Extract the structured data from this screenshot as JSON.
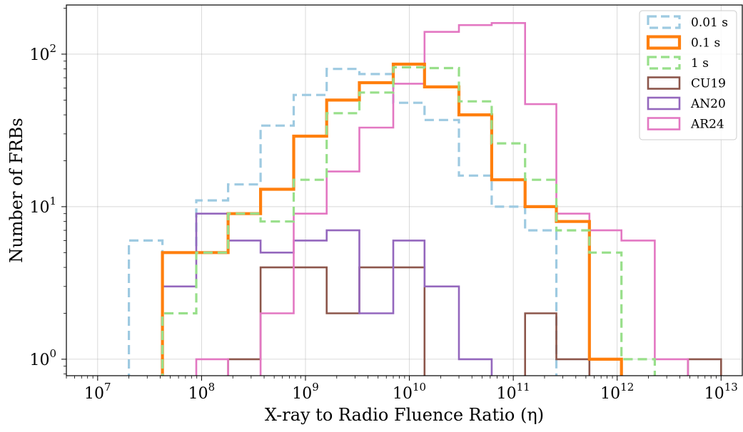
{
  "chart_data": {
    "type": "step-histogram",
    "xlabel": "X-ray to Radio Fluence Ratio (η)",
    "ylabel": "Number of FRBs",
    "xscale": "log",
    "yscale": "log",
    "xlim": [
      5000000,
      16000000000000
    ],
    "ylim": [
      0.78,
      210
    ],
    "grid": true,
    "legend_position": "top-right",
    "x_ticks": [
      {
        "base": "10",
        "exp": "7"
      },
      {
        "base": "10",
        "exp": "8"
      },
      {
        "base": "10",
        "exp": "9"
      },
      {
        "base": "10",
        "exp": "10"
      },
      {
        "base": "10",
        "exp": "11"
      },
      {
        "base": "10",
        "exp": "12"
      },
      {
        "base": "10",
        "exp": "13"
      }
    ],
    "y_ticks": [
      {
        "base": "10",
        "exp": "0"
      },
      {
        "base": "10",
        "exp": "1"
      },
      {
        "base": "10",
        "exp": "2"
      }
    ],
    "series": [
      {
        "name": "0.01 s",
        "color": "#9ecae1",
        "style": "dashed",
        "bin_edges": [
          20000000,
          42000000,
          89000000,
          180000000,
          370000000,
          770000000,
          1600000000,
          3300000000,
          7000000000,
          14000000000,
          30000000000,
          62000000000,
          130000000000,
          260000000000
        ],
        "counts": [
          6,
          5,
          11,
          14,
          34,
          54,
          80,
          74,
          48,
          37,
          16,
          10,
          7
        ]
      },
      {
        "name": "0.1 s",
        "color": "#ff7f0e",
        "style": "solid-thick",
        "bin_edges": [
          42000000,
          89000000,
          180000000,
          370000000,
          770000000,
          1600000000,
          3300000000,
          7000000000,
          14000000000,
          30000000000,
          62000000000,
          130000000000,
          260000000000,
          540000000000,
          1100000000000
        ],
        "counts": [
          5,
          5,
          9,
          13,
          29,
          50,
          65,
          86,
          61,
          40,
          15,
          10,
          8,
          1
        ]
      },
      {
        "name": "1 s",
        "color": "#98df8a",
        "style": "dashed",
        "bin_edges": [
          42000000,
          89000000,
          180000000,
          370000000,
          770000000,
          1600000000,
          3300000000,
          7000000000,
          14000000000,
          30000000000,
          62000000000,
          130000000000,
          260000000000,
          540000000000,
          1100000000000,
          2300000000000
        ],
        "counts": [
          2,
          5,
          9,
          8,
          15,
          41,
          56,
          82,
          81,
          49,
          26,
          15,
          7,
          5,
          1
        ]
      },
      {
        "name": "CU19",
        "color": "#8c564b",
        "style": "solid",
        "bin_edges": [
          180000000,
          370000000,
          770000000,
          1600000000,
          3300000000,
          7000000000,
          14000000000,
          30000000000,
          62000000000,
          130000000000,
          260000000000,
          540000000000,
          1100000000000,
          2300000000000,
          4800000000000,
          10000000000000
        ],
        "counts": [
          1,
          4,
          4,
          2,
          4,
          4,
          0,
          0,
          0,
          2,
          1,
          0,
          0,
          0,
          1
        ]
      },
      {
        "name": "AN20",
        "color": "#9467bd",
        "style": "solid",
        "bin_edges": [
          42000000,
          89000000,
          180000000,
          370000000,
          770000000,
          1600000000,
          3300000000,
          7000000000,
          14000000000,
          30000000000,
          62000000000
        ],
        "counts": [
          3,
          9,
          6,
          5,
          6,
          7,
          2,
          6,
          3,
          1
        ]
      },
      {
        "name": "AR24",
        "color": "#e377c2",
        "style": "solid",
        "bin_edges": [
          89000000,
          180000000,
          370000000,
          770000000,
          1600000000,
          3300000000,
          7000000000,
          14000000000,
          30000000000,
          62000000000,
          130000000000,
          260000000000,
          540000000000,
          1100000000000,
          2300000000000,
          4800000000000
        ],
        "counts": [
          1,
          0,
          2,
          9,
          17,
          33,
          64,
          140,
          155,
          160,
          47,
          9,
          7,
          6,
          1
        ]
      }
    ]
  }
}
